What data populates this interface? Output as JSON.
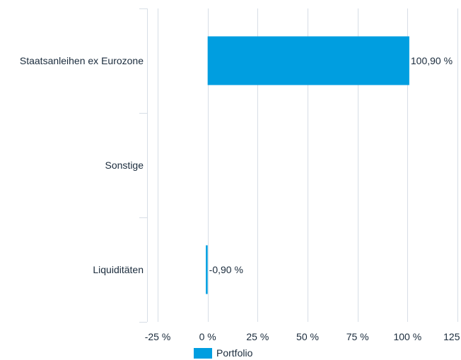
{
  "chart_data": {
    "type": "bar",
    "orientation": "horizontal",
    "categories": [
      "Staatsanleihen ex Eurozone",
      "Sonstige",
      "Liquiditäten"
    ],
    "series": [
      {
        "name": "Portfolio",
        "values": [
          100.9,
          null,
          -0.9
        ],
        "data_labels": [
          "100,90 %",
          "",
          "-0,90 %"
        ],
        "color": "#009ee0"
      }
    ],
    "xlim": [
      -25,
      125
    ],
    "x_ticks": [
      -25,
      0,
      25,
      50,
      75,
      100,
      125
    ],
    "x_tick_labels": [
      "-25 %",
      "0 %",
      "25 %",
      "50 %",
      "75 %",
      "100 %",
      "125 %"
    ],
    "grid": true,
    "legend": "bottom-center"
  },
  "colors": {
    "bar": "#009ee0",
    "grid": "#d7dee6",
    "text": "#1a2b3c"
  }
}
